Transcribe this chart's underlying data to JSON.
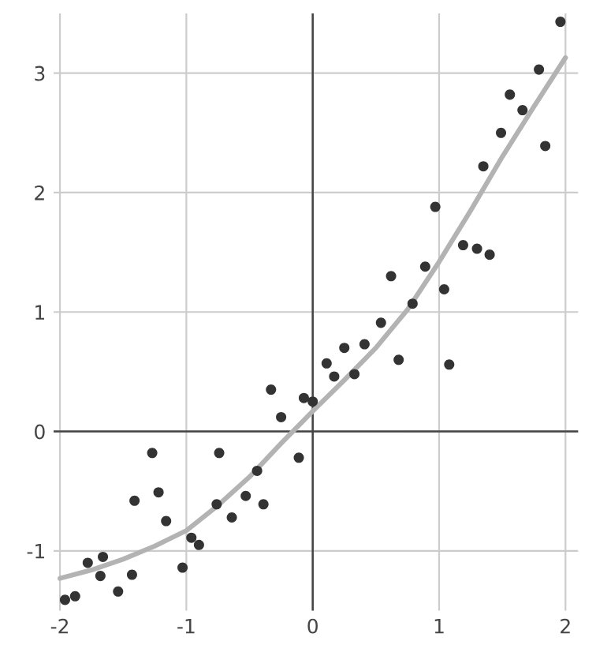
{
  "chart_data": {
    "type": "scatter",
    "xlim": [
      -2.05,
      2.1
    ],
    "ylim": [
      -1.5,
      3.5
    ],
    "xticks": [
      -2,
      -1,
      0,
      1,
      2
    ],
    "yticks": [
      -1,
      0,
      1,
      2,
      3
    ],
    "grid": true,
    "marker": "circle",
    "series": [
      {
        "color": "#333333",
        "x": [
          -1.96,
          -1.88,
          -1.78,
          -1.66,
          -1.68,
          -1.54,
          -1.43,
          -1.41,
          -1.27,
          -1.22,
          -1.16,
          -1.03,
          -0.96,
          -0.9,
          -0.76,
          -0.74,
          -0.64,
          -0.53,
          -0.44,
          -0.39,
          -0.33,
          -0.25,
          -0.11,
          -0.07,
          0.0,
          0.11,
          0.17,
          0.25,
          0.33,
          0.41,
          0.54,
          0.62,
          0.68,
          0.79,
          0.89,
          0.97,
          1.04,
          1.08,
          1.19,
          1.3,
          1.35,
          1.4,
          1.49,
          1.56,
          1.66,
          1.79,
          1.84,
          1.96
        ],
        "values": [
          -1.41,
          -1.38,
          -1.1,
          -1.05,
          -1.21,
          -1.34,
          -1.2,
          -0.58,
          -0.18,
          -0.51,
          -0.75,
          -1.14,
          -0.89,
          -0.95,
          -0.61,
          -0.18,
          -0.72,
          -0.54,
          -0.33,
          -0.61,
          0.35,
          0.12,
          -0.22,
          0.28,
          0.25,
          0.57,
          0.46,
          0.7,
          0.48,
          0.73,
          0.91,
          1.3,
          0.6,
          1.07,
          1.38,
          1.88,
          1.19,
          0.56,
          1.56,
          1.53,
          2.22,
          1.48,
          2.5,
          2.82,
          2.69,
          3.03,
          2.39,
          3.43
        ]
      },
      {
        "type": "line",
        "color": "#b3b3b3",
        "marker": "none",
        "x": [
          -2,
          -1.75,
          -1.5,
          -1.25,
          -1,
          -0.75,
          -0.5,
          -0.25,
          0,
          0.25,
          0.5,
          0.75,
          1,
          1.25,
          1.5,
          1.75,
          2
        ],
        "values": [
          -1.23,
          -1.16,
          -1.07,
          -0.96,
          -0.83,
          -0.62,
          -0.38,
          -0.1,
          0.17,
          0.43,
          0.7,
          1.02,
          1.42,
          1.85,
          2.3,
          2.72,
          3.13
        ]
      }
    ]
  }
}
